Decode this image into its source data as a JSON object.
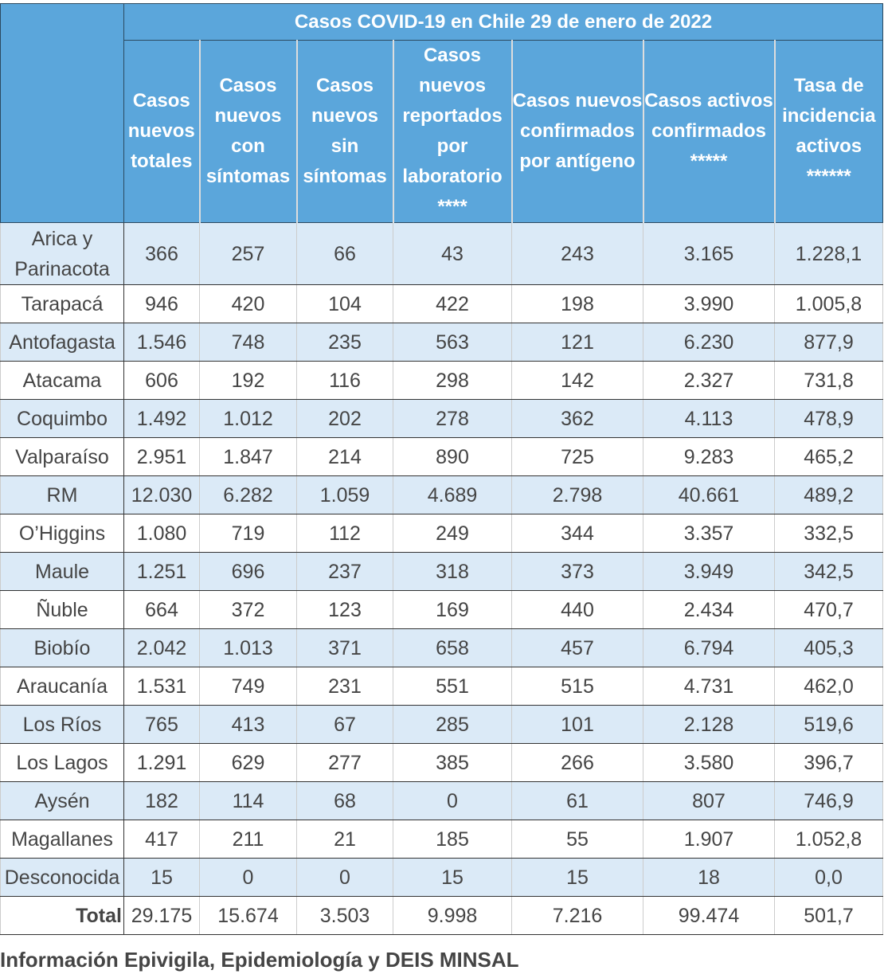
{
  "title": "Casos COVID-19 en Chile 29 de enero de 2022",
  "columns": [
    "Casos nuevos totales",
    "Casos nuevos con síntomas",
    "Casos nuevos sin síntomas",
    "Casos nuevos reportados por laboratorio ****",
    "Casos nuevos confirmados por antígeno",
    "Casos activos confirmados *****",
    "Tasa de incidencia activos ******"
  ],
  "rows": [
    {
      "region": "Arica y Parinacota",
      "values": [
        "366",
        "257",
        "66",
        "43",
        "243",
        "3.165",
        "1.228,1"
      ]
    },
    {
      "region": "Tarapacá",
      "values": [
        "946",
        "420",
        "104",
        "422",
        "198",
        "3.990",
        "1.005,8"
      ]
    },
    {
      "region": "Antofagasta",
      "values": [
        "1.546",
        "748",
        "235",
        "563",
        "121",
        "6.230",
        "877,9"
      ]
    },
    {
      "region": "Atacama",
      "values": [
        "606",
        "192",
        "116",
        "298",
        "142",
        "2.327",
        "731,8"
      ]
    },
    {
      "region": "Coquimbo",
      "values": [
        "1.492",
        "1.012",
        "202",
        "278",
        "362",
        "4.113",
        "478,9"
      ]
    },
    {
      "region": "Valparaíso",
      "values": [
        "2.951",
        "1.847",
        "214",
        "890",
        "725",
        "9.283",
        "465,2"
      ]
    },
    {
      "region": "RM",
      "values": [
        "12.030",
        "6.282",
        "1.059",
        "4.689",
        "2.798",
        "40.661",
        "489,2"
      ]
    },
    {
      "region": "O’Higgins",
      "values": [
        "1.080",
        "719",
        "112",
        "249",
        "344",
        "3.357",
        "332,5"
      ]
    },
    {
      "region": "Maule",
      "values": [
        "1.251",
        "696",
        "237",
        "318",
        "373",
        "3.949",
        "342,5"
      ]
    },
    {
      "region": "Ñuble",
      "values": [
        "664",
        "372",
        "123",
        "169",
        "440",
        "2.434",
        "470,7"
      ]
    },
    {
      "region": "Biobío",
      "values": [
        "2.042",
        "1.013",
        "371",
        "658",
        "457",
        "6.794",
        "405,3"
      ]
    },
    {
      "region": "Araucanía",
      "values": [
        "1.531",
        "749",
        "231",
        "551",
        "515",
        "4.731",
        "462,0"
      ]
    },
    {
      "region": "Los Ríos",
      "values": [
        "765",
        "413",
        "67",
        "285",
        "101",
        "2.128",
        "519,6"
      ]
    },
    {
      "region": "Los Lagos",
      "values": [
        "1.291",
        "629",
        "277",
        "385",
        "266",
        "3.580",
        "396,7"
      ]
    },
    {
      "region": "Aysén",
      "values": [
        "182",
        "114",
        "68",
        "0",
        "61",
        "807",
        "746,9"
      ]
    },
    {
      "region": "Magallanes",
      "values": [
        "417",
        "211",
        "21",
        "185",
        "55",
        "1.907",
        "1.052,8"
      ]
    },
    {
      "region": "Desconocida",
      "values": [
        "15",
        "0",
        "0",
        "15",
        "15",
        "18",
        "0,0"
      ]
    }
  ],
  "total": {
    "label": "Total",
    "values": [
      "29.175",
      "15.674",
      "3.503",
      "9.998",
      "7.216",
      "99.474",
      "501,7"
    ]
  },
  "footer": "Información Epivigila, Epidemiología y DEIS MINSAL",
  "colors": {
    "header": "#5ba6db",
    "alt_row": "#dbeaf7",
    "text": "#454545"
  }
}
